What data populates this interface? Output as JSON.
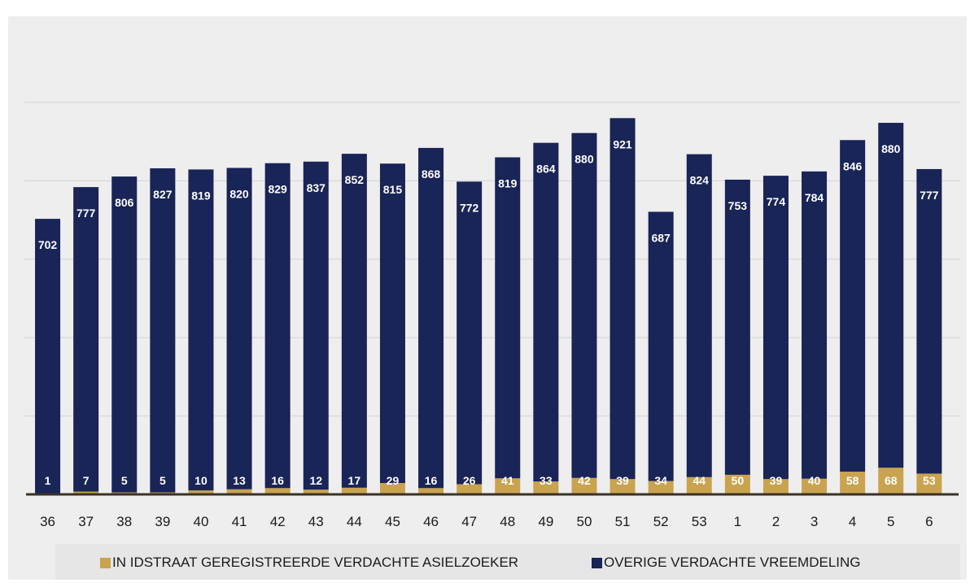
{
  "colors": {
    "background": "#eeeeee",
    "primary_bar": "#192457",
    "secondary_bar": "#c9a34f",
    "label_text": "#ffffff",
    "axis_text": "#1a1a1a",
    "axis_line": "#3a3226",
    "gridline": "#d2d2d2"
  },
  "chart_data": {
    "type": "bar",
    "stacked": true,
    "grid": true,
    "legend_position": "bottom",
    "ylim": [
      0,
      1000
    ],
    "categories": [
      "36",
      "37",
      "38",
      "39",
      "40",
      "41",
      "42",
      "43",
      "44",
      "45",
      "46",
      "47",
      "48",
      "49",
      "50",
      "51",
      "52",
      "53",
      "1",
      "2",
      "3",
      "4",
      "5",
      "6"
    ],
    "series": [
      {
        "name": "IN IDSTRAAT GEREGISTREERDE VERDACHTE ASIELZOEKER",
        "color": "#c9a34f",
        "values": [
          1,
          7,
          5,
          5,
          10,
          13,
          16,
          12,
          17,
          29,
          16,
          26,
          41,
          33,
          42,
          39,
          34,
          44,
          50,
          39,
          40,
          58,
          68,
          53
        ]
      },
      {
        "name": "OVERIGE VERDACHTE VREEMDELING",
        "color": "#192457",
        "values": [
          702,
          777,
          806,
          827,
          819,
          820,
          829,
          837,
          852,
          815,
          868,
          772,
          819,
          864,
          880,
          921,
          687,
          824,
          753,
          774,
          784,
          846,
          880,
          777
        ]
      }
    ]
  }
}
